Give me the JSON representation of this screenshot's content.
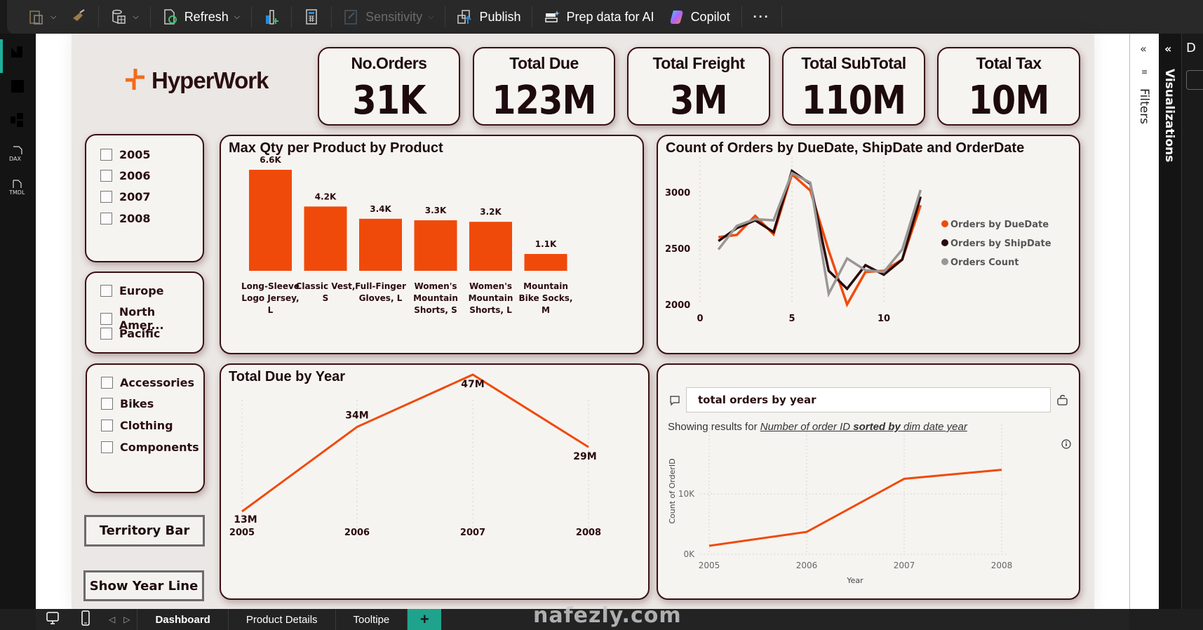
{
  "toolbar": {
    "items": [
      {
        "label": "",
        "icon": "paste-icon"
      },
      {
        "label": "",
        "icon": "format-painter-icon"
      },
      {
        "label": "",
        "icon": "data-source-icon"
      },
      {
        "label": "Refresh",
        "icon": "refresh-icon"
      },
      {
        "label": "",
        "icon": "new-visual-icon"
      },
      {
        "label": "",
        "icon": "calculator-icon"
      },
      {
        "label": "Sensitivity",
        "icon": "sensitivity-icon",
        "disabled": true
      },
      {
        "label": "Publish",
        "icon": "publish-icon"
      },
      {
        "label": "Prep data for AI",
        "icon": "prep-data-icon"
      },
      {
        "label": "Copilot",
        "icon": "copilot-icon"
      },
      {
        "label": "···",
        "icon": "more-icon"
      }
    ]
  },
  "left_rail": {
    "items": [
      "report-view",
      "table-view",
      "model-view",
      "DAX",
      "TMDL"
    ]
  },
  "logo": {
    "text": "HyperWork",
    "accent": "#f26a1b"
  },
  "kpis": [
    {
      "title": "No.Orders",
      "value": "31K"
    },
    {
      "title": "Total Due",
      "value": "123M"
    },
    {
      "title": "Total Freight",
      "value": "3M"
    },
    {
      "title": "Total SubTotal",
      "value": "110M"
    },
    {
      "title": "Total Tax",
      "value": "10M"
    }
  ],
  "slicers": {
    "years": [
      "2005",
      "2006",
      "2007",
      "2008"
    ],
    "regions": [
      "Europe",
      "North Amer...",
      "Pacific"
    ],
    "categories": [
      "Accessories",
      "Bikes",
      "Clothing",
      "Components"
    ]
  },
  "buttons": {
    "territory_bar": "Territory Bar",
    "show_year_line": "Show Year Line"
  },
  "colors": {
    "accent": "#f04a0a",
    "dark": "#2a0a0c",
    "gray": "#9a9696",
    "card_bg": "#f6f4f1",
    "card_border": "#3a1012"
  },
  "chart_data": [
    {
      "id": "max-qty",
      "type": "bar",
      "title": "Max Qty per Product by Product",
      "categories": [
        [
          "Long-Sleeve",
          "Logo Jersey,",
          "L"
        ],
        [
          "Classic Vest,",
          "S"
        ],
        [
          "Full-Finger",
          "Gloves, L"
        ],
        [
          "Women's",
          "Mountain",
          "Shorts, S"
        ],
        [
          "Women's",
          "Mountain",
          "Shorts, L"
        ],
        [
          "Mountain",
          "Bike Socks,",
          "M"
        ]
      ],
      "values": [
        6600,
        4200,
        3400,
        3300,
        3200,
        1100
      ],
      "labels": [
        "6.6K",
        "4.2K",
        "3.4K",
        "3.3K",
        "3.2K",
        "1.1K"
      ],
      "ylim": [
        0,
        6600
      ]
    },
    {
      "id": "orders-by-date",
      "type": "line",
      "title": "Count of Orders by DueDate, ShipDate and OrderDate",
      "x": [
        1,
        2,
        3,
        4,
        5,
        6,
        7,
        8,
        9,
        10,
        11,
        12
      ],
      "xticks": [
        "0",
        "5",
        "10"
      ],
      "xtick_values": [
        0,
        5,
        10
      ],
      "yticks": [
        "2000",
        "2500",
        "3000"
      ],
      "ytick_values": [
        2000,
        2500,
        3000
      ],
      "xlim": [
        0,
        12
      ],
      "ylim": [
        1800,
        3250
      ],
      "legend_position": "right",
      "series": [
        {
          "name": "Orders by DueDate",
          "color": "#f04a0a",
          "values": [
            2600,
            2620,
            2790,
            2625,
            3160,
            3015,
            2480,
            2000,
            2290,
            2300,
            2400,
            2885
          ]
        },
        {
          "name": "Orders by ShipDate",
          "color": "#2a0a0c",
          "values": [
            2565,
            2680,
            2750,
            2645,
            3190,
            3075,
            2300,
            2140,
            2350,
            2265,
            2400,
            2960
          ]
        },
        {
          "name": "Orders Count",
          "color": "#9a9696",
          "values": [
            2490,
            2700,
            2760,
            2750,
            3170,
            3085,
            2095,
            2410,
            2305,
            2290,
            2490,
            3020
          ]
        }
      ]
    },
    {
      "id": "total-due-year",
      "type": "line",
      "title": "Total Due by Year",
      "categories": [
        "2005",
        "2006",
        "2007",
        "2008"
      ],
      "values": [
        13,
        34,
        47,
        29
      ],
      "labels": [
        "13M",
        "34M",
        "47M",
        "29M"
      ],
      "unit": "M",
      "ylim": [
        13,
        47
      ]
    },
    {
      "id": "qa-orders-year",
      "type": "line",
      "title": "",
      "categories": [
        "2005",
        "2006",
        "2007",
        "2008"
      ],
      "values": [
        1400,
        3700,
        12500,
        14000
      ],
      "xlabel": "Year",
      "ylabel": "Count of OrderID",
      "yticks": [
        "0K",
        "10K"
      ],
      "ytick_values": [
        0,
        10000
      ],
      "ylim": [
        0,
        15000
      ]
    }
  ],
  "qa": {
    "query": "total orders by year",
    "result_prefix": "Showing results for ",
    "result_part1": "Number of order ID ",
    "result_bold": "sorted by",
    "result_part2": " dim date year"
  },
  "panes": {
    "filters": "Filters",
    "visualizations": "Visualizations",
    "data_initial": "D"
  },
  "pages": {
    "tabs": [
      "Dashboard",
      "Product Details",
      "Tooltipe"
    ],
    "active": "Dashboard",
    "add": "+"
  },
  "watermark": "nafezly.com"
}
